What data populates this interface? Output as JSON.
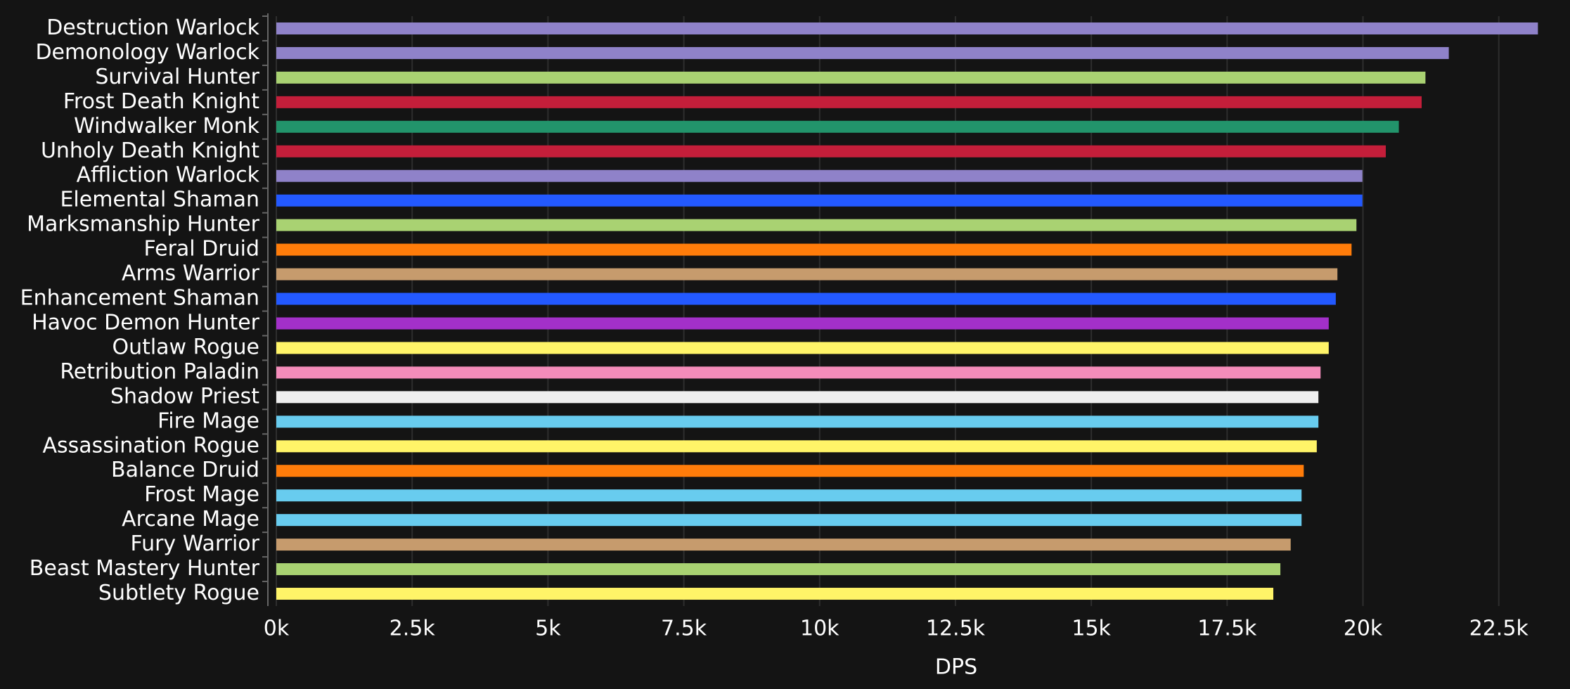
{
  "chart_data": {
    "type": "bar",
    "orientation": "horizontal",
    "x_label": "DPS",
    "categories": [
      "Destruction Warlock",
      "Demonology Warlock",
      "Survival Hunter",
      "Frost Death Knight",
      "Windwalker Monk",
      "Unholy Death Knight",
      "Affliction Warlock",
      "Elemental Shaman",
      "Marksmanship Hunter",
      "Feral Druid",
      "Arms Warrior",
      "Enhancement Shaman",
      "Havoc Demon Hunter",
      "Outlaw Rogue",
      "Retribution Paladin",
      "Shadow Priest",
      "Fire Mage",
      "Assassination Rogue",
      "Balance Druid",
      "Frost Mage",
      "Arcane Mage",
      "Fury Warrior",
      "Beast Mastery Hunter",
      "Subtlety Rogue"
    ],
    "values": [
      23220,
      21580,
      21150,
      21080,
      20660,
      20420,
      19990,
      19990,
      19880,
      19790,
      19530,
      19500,
      19370,
      19370,
      19220,
      19180,
      19180,
      19150,
      18910,
      18870,
      18870,
      18670,
      18480,
      18350
    ],
    "colors": [
      "#8f82c9",
      "#8f82c9",
      "#a9d272",
      "#c41e3a",
      "#22946b",
      "#c41e3a",
      "#8f82c9",
      "#2359ff",
      "#a9d272",
      "#ff7c0a",
      "#c69b6d",
      "#2359ff",
      "#a330c9",
      "#fff468",
      "#f48cba",
      "#efefef",
      "#68ccef",
      "#fff468",
      "#ff7c0a",
      "#68ccef",
      "#68ccef",
      "#c69b6d",
      "#a9d272",
      "#fff468"
    ],
    "xlim": [
      0,
      23500
    ],
    "xticks": [
      {
        "value": 0,
        "label": "0k"
      },
      {
        "value": 2500,
        "label": "2.5k"
      },
      {
        "value": 5000,
        "label": "5k"
      },
      {
        "value": 7500,
        "label": "7.5k"
      },
      {
        "value": 10000,
        "label": "10k"
      },
      {
        "value": 12500,
        "label": "12.5k"
      },
      {
        "value": 15000,
        "label": "15k"
      },
      {
        "value": 17500,
        "label": "17.5k"
      },
      {
        "value": 20000,
        "label": "20k"
      },
      {
        "value": 22500,
        "label": "22.5k"
      }
    ],
    "grid": true
  }
}
